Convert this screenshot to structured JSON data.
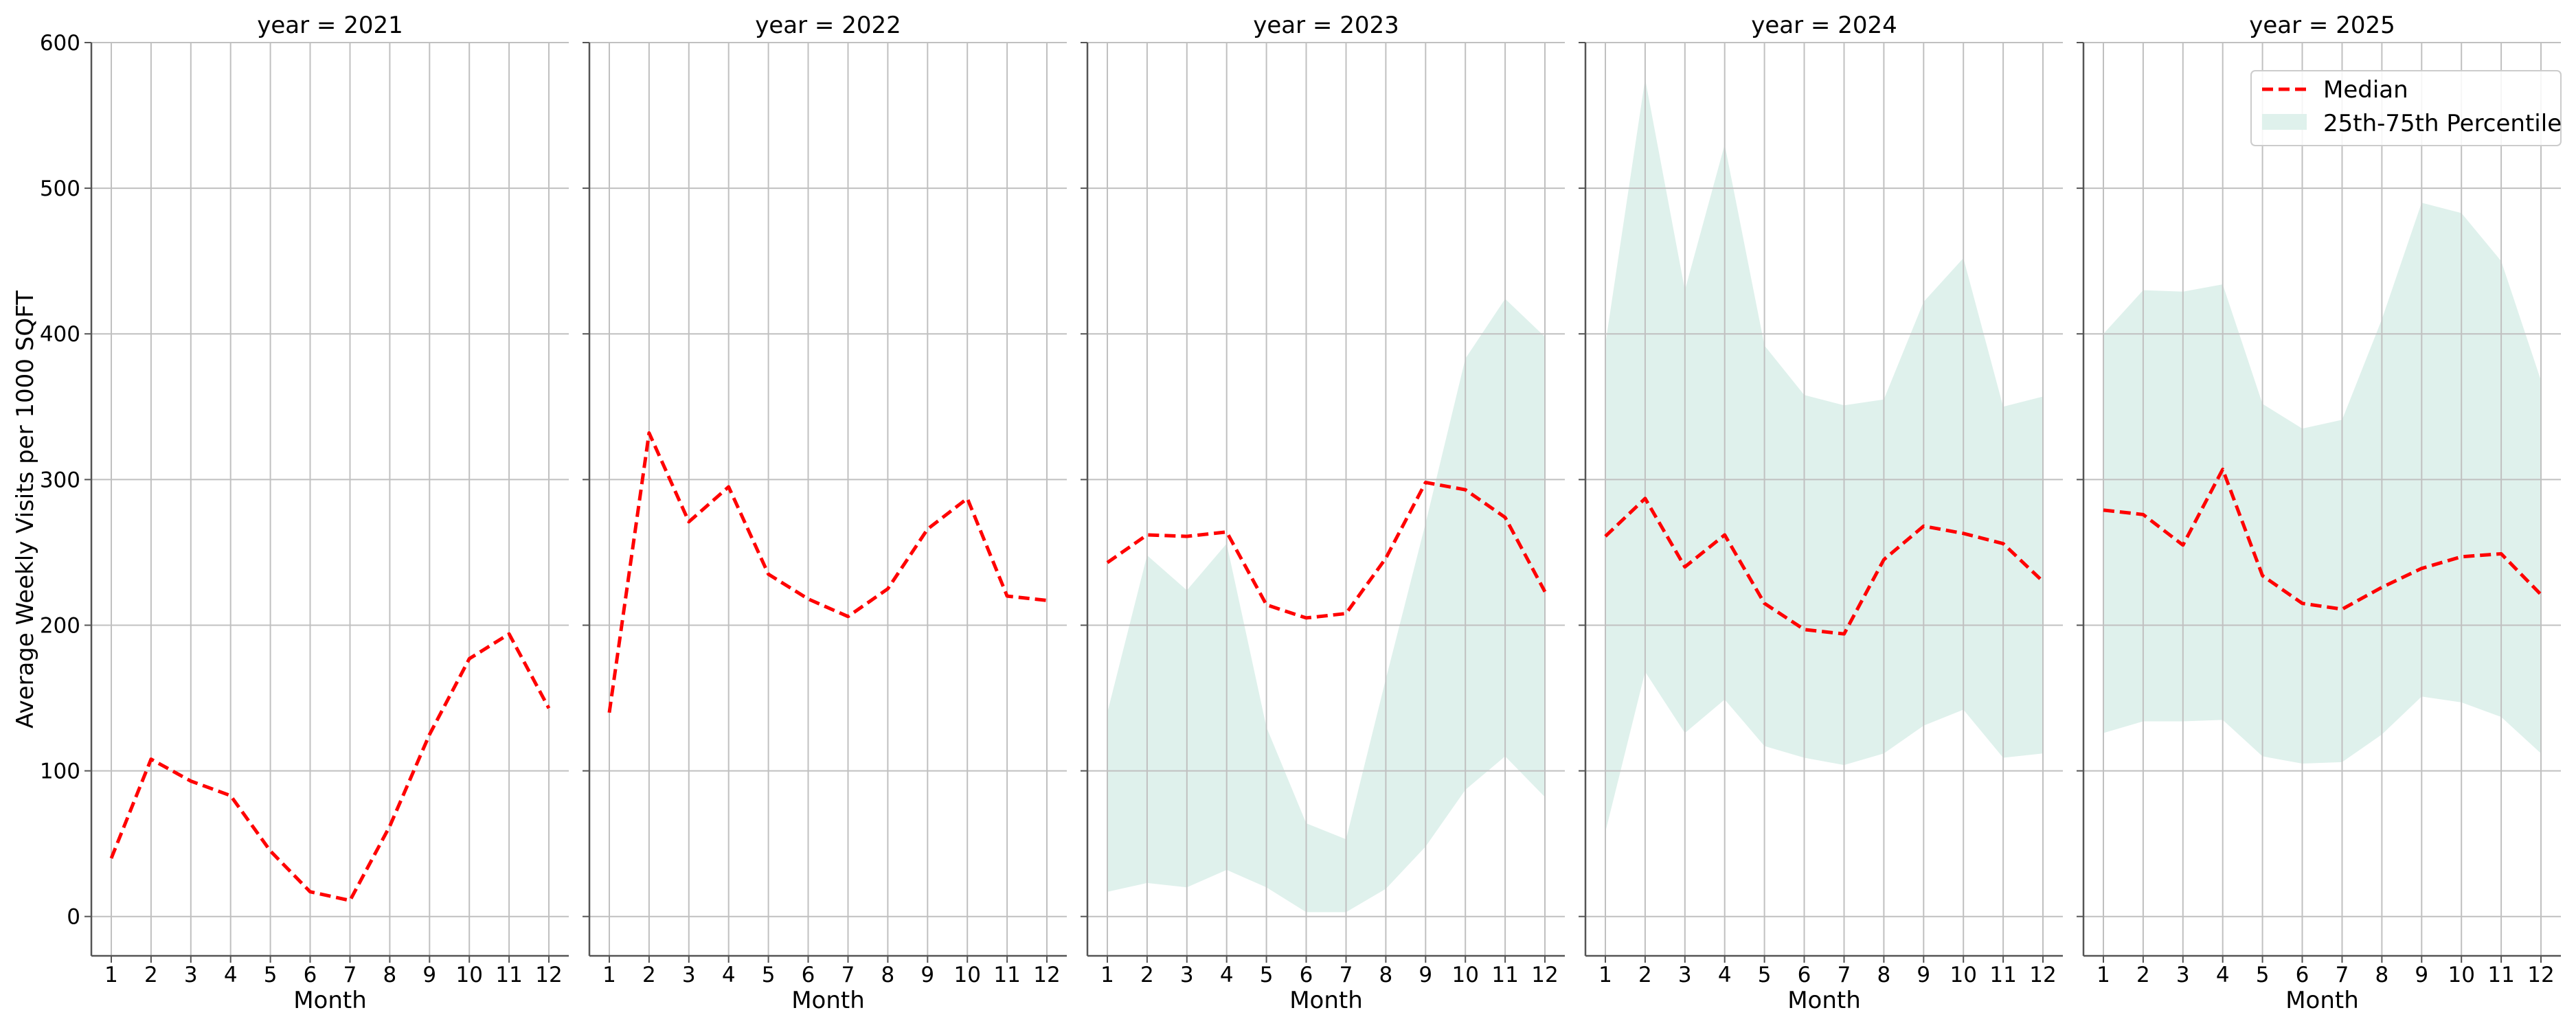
{
  "chart_data": {
    "type": "line",
    "facet_by": "year",
    "ylabel": "Average Weekly Visits per 1000 SQFT",
    "ylim": [
      -27,
      600
    ],
    "yticks": [
      0,
      100,
      200,
      300,
      400,
      500,
      600
    ],
    "xlim": [
      0.5,
      12.5
    ],
    "xticks": [
      1,
      2,
      3,
      4,
      5,
      6,
      7,
      8,
      9,
      10,
      11,
      12
    ],
    "grid": true,
    "legend": {
      "placement": "top-right",
      "entries": [
        "Median",
        "25th-75th Percentile"
      ]
    },
    "colors": {
      "median": "#ff0000",
      "band": "#dff1ec",
      "grid": "#c0c0c0",
      "axis": "#555555"
    },
    "panels": [
      {
        "title": "year = 2021",
        "xlabel": "Month",
        "x": [
          1,
          2,
          3,
          4,
          5,
          6,
          7,
          8,
          9,
          10,
          11,
          12
        ],
        "median": [
          40,
          108,
          93,
          83,
          45,
          17,
          11,
          62,
          125,
          177,
          194,
          143
        ],
        "p25": null,
        "p75": null
      },
      {
        "title": "year = 2022",
        "xlabel": "Month",
        "x": [
          1,
          2,
          3,
          4,
          5,
          6,
          7,
          8,
          9,
          10,
          11,
          12
        ],
        "median": [
          140,
          332,
          271,
          295,
          235,
          218,
          206,
          225,
          266,
          287,
          220,
          217
        ],
        "p25": null,
        "p75": null
      },
      {
        "title": "year = 2023",
        "xlabel": "Month",
        "x": [
          1,
          2,
          3,
          4,
          5,
          6,
          7,
          8,
          9,
          10,
          11,
          12
        ],
        "median": [
          243,
          262,
          261,
          264,
          214,
          205,
          208,
          246,
          298,
          293,
          274,
          223
        ],
        "p25": [
          17,
          23,
          20,
          32,
          20,
          3,
          3,
          19,
          48,
          87,
          110,
          82
        ],
        "p75": [
          140,
          248,
          224,
          256,
          130,
          64,
          53,
          163,
          270,
          383,
          424,
          398
        ]
      },
      {
        "title": "year = 2024",
        "xlabel": "Month",
        "x": [
          1,
          2,
          3,
          4,
          5,
          6,
          7,
          8,
          9,
          10,
          11,
          12
        ],
        "median": [
          261,
          287,
          240,
          262,
          215,
          197,
          194,
          245,
          268,
          263,
          256,
          230
        ],
        "p25": [
          58,
          168,
          126,
          149,
          117,
          109,
          104,
          112,
          131,
          142,
          109,
          112
        ],
        "p75": [
          393,
          575,
          430,
          530,
          392,
          358,
          351,
          355,
          422,
          452,
          350,
          357
        ]
      },
      {
        "title": "year = 2025",
        "xlabel": "Month",
        "x": [
          1,
          2,
          3,
          4,
          5,
          6,
          7,
          8,
          9,
          10,
          11,
          12
        ],
        "median": [
          279,
          276,
          255,
          307,
          234,
          215,
          211,
          226,
          239,
          247,
          249,
          221
        ],
        "p25": [
          126,
          134,
          134,
          135,
          110,
          105,
          106,
          125,
          151,
          147,
          137,
          112
        ],
        "p75": [
          400,
          430,
          429,
          434,
          352,
          335,
          341,
          410,
          490,
          483,
          450,
          368
        ]
      }
    ]
  }
}
